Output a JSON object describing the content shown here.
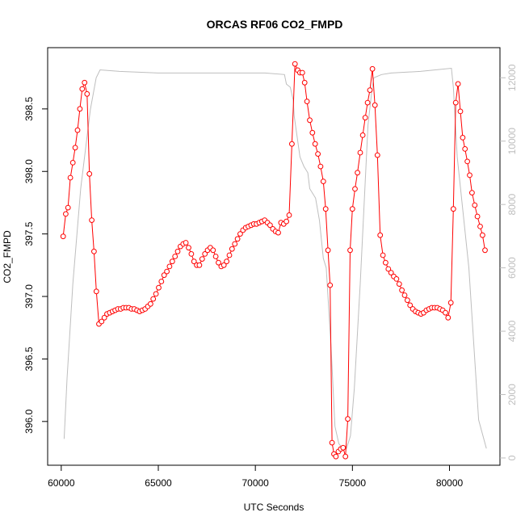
{
  "chart_data": {
    "type": "line",
    "title": "ORCAS RF06 CO2_FMPD",
    "xlabel": "UTC Seconds",
    "ylabel": "CO2_FMPD",
    "xlim": [
      59300,
      82600
    ],
    "ylim": [
      395.65,
      398.99
    ],
    "y2lim": [
      -230,
      12950
    ],
    "x_ticks": [
      60000,
      65000,
      70000,
      75000,
      80000
    ],
    "y_ticks": [
      396.0,
      396.5,
      397.0,
      397.5,
      398.0,
      398.5
    ],
    "y_tick_labels": [
      "396.0",
      "396.5",
      "397.0",
      "397.5",
      "398.0",
      "398.5"
    ],
    "y2_ticks": [
      0,
      2000,
      4000,
      6000,
      8000,
      10000,
      12000
    ],
    "series": [
      {
        "role": "co2",
        "color": "#ff0000",
        "marker": "open-circle",
        "axis": "left",
        "x": [
          60100,
          60230,
          60350,
          60470,
          60600,
          60720,
          60840,
          60960,
          61080,
          61200,
          61330,
          61450,
          61570,
          61690,
          61810,
          61940,
          62080,
          62220,
          62360,
          62500,
          62640,
          62780,
          62920,
          63060,
          63200,
          63340,
          63480,
          63620,
          63760,
          63900,
          64040,
          64180,
          64320,
          64460,
          64600,
          64740,
          64880,
          65020,
          65160,
          65300,
          65440,
          65580,
          65720,
          65860,
          66000,
          66140,
          66280,
          66420,
          66560,
          66700,
          66840,
          66980,
          67120,
          67260,
          67400,
          67540,
          67680,
          67820,
          67960,
          68100,
          68240,
          68380,
          68520,
          68660,
          68800,
          68940,
          69080,
          69220,
          69360,
          69500,
          69640,
          69780,
          69920,
          70060,
          70200,
          70340,
          70480,
          70620,
          70760,
          70900,
          71040,
          71180,
          71320,
          71460,
          71600,
          71740,
          71880,
          72040,
          72180,
          72300,
          72420,
          72540,
          72660,
          72800,
          72940,
          73080,
          73220,
          73360,
          73500,
          73620,
          73740,
          73850,
          73950,
          74050,
          74150,
          74280,
          74400,
          74520,
          74640,
          74760,
          74880,
          75000,
          75130,
          75260,
          75400,
          75530,
          75660,
          75780,
          75900,
          76030,
          76160,
          76290,
          76430,
          76570,
          76710,
          76850,
          76990,
          77130,
          77270,
          77410,
          77550,
          77690,
          77830,
          77970,
          78110,
          78250,
          78390,
          78530,
          78670,
          78810,
          78950,
          79090,
          79230,
          79370,
          79510,
          79650,
          79790,
          79930,
          80070,
          80200,
          80320,
          80440,
          80560,
          80680,
          80800,
          80920,
          81040,
          81160,
          81300,
          81440,
          81580,
          81700,
          81830
        ],
        "y": [
          397.48,
          397.66,
          397.71,
          397.95,
          398.07,
          398.19,
          398.33,
          398.5,
          398.66,
          398.71,
          398.62,
          397.98,
          397.61,
          397.36,
          397.04,
          396.78,
          396.8,
          396.83,
          396.86,
          396.87,
          396.88,
          396.89,
          396.9,
          396.9,
          396.91,
          396.91,
          396.91,
          396.9,
          396.9,
          396.89,
          396.88,
          396.89,
          396.9,
          396.92,
          396.94,
          396.98,
          397.02,
          397.07,
          397.12,
          397.17,
          397.2,
          397.24,
          397.28,
          397.32,
          397.36,
          397.4,
          397.42,
          397.43,
          397.39,
          397.34,
          397.28,
          397.25,
          397.25,
          397.3,
          397.34,
          397.37,
          397.39,
          397.37,
          397.32,
          397.27,
          397.24,
          397.25,
          397.28,
          397.33,
          397.38,
          397.42,
          397.46,
          397.5,
          397.53,
          397.55,
          397.56,
          397.57,
          397.58,
          397.58,
          397.59,
          397.6,
          397.61,
          397.59,
          397.57,
          397.54,
          397.52,
          397.51,
          397.59,
          397.58,
          397.6,
          397.65,
          398.22,
          398.86,
          398.81,
          398.79,
          398.79,
          398.71,
          398.56,
          398.41,
          398.31,
          398.22,
          398.14,
          398.04,
          397.92,
          397.7,
          397.37,
          397.09,
          395.83,
          395.74,
          395.72,
          395.76,
          395.78,
          395.79,
          395.72,
          396.02,
          397.37,
          397.7,
          397.86,
          397.99,
          398.15,
          398.29,
          398.43,
          398.55,
          398.65,
          398.82,
          398.53,
          398.13,
          397.49,
          397.33,
          397.27,
          397.22,
          397.19,
          397.16,
          397.14,
          397.1,
          397.05,
          397.01,
          396.97,
          396.93,
          396.9,
          396.88,
          396.87,
          396.86,
          396.87,
          396.89,
          396.9,
          396.91,
          396.91,
          396.91,
          396.9,
          396.89,
          396.87,
          396.83,
          396.95,
          397.7,
          398.55,
          398.7,
          398.48,
          398.27,
          398.18,
          398.08,
          397.97,
          397.83,
          397.73,
          397.64,
          397.56,
          397.49,
          397.37
        ]
      },
      {
        "role": "altitude",
        "color": "#bebebe",
        "axis": "right",
        "x": [
          60150,
          60300,
          60600,
          61000,
          61500,
          61800,
          62000,
          63000,
          65000,
          67000,
          69000,
          70500,
          71500,
          71600,
          71800,
          71950,
          72000,
          72300,
          72500,
          72700,
          72800,
          73100,
          73300,
          73500,
          73650,
          73900,
          74100,
          74300,
          74500,
          74700,
          74900,
          75100,
          75400,
          75600,
          75800,
          76000,
          76100,
          76300,
          76500,
          77000,
          78500,
          80100,
          80200,
          80400,
          81000,
          81500,
          81900
        ],
        "y": [
          600,
          2500,
          5500,
          8500,
          11000,
          12000,
          12250,
          12200,
          12150,
          12150,
          12150,
          12150,
          12100,
          11800,
          11700,
          11300,
          10800,
          9500,
          9200,
          9000,
          8500,
          8200,
          7500,
          6300,
          6000,
          3500,
          1000,
          450,
          300,
          300,
          700,
          2200,
          5500,
          8000,
          10500,
          11600,
          12000,
          12050,
          12100,
          12150,
          12200,
          12300,
          11700,
          9500,
          6000,
          1200,
          300
        ]
      }
    ]
  }
}
